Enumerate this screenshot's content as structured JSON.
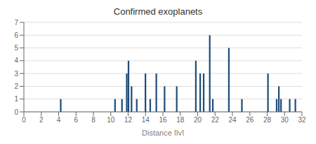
{
  "chart_data": {
    "type": "bar",
    "title": "Confirmed exoplanets",
    "xlabel": "Distance [ly]",
    "x": [
      4.25,
      10.5,
      11.3,
      11.85,
      12.05,
      12.4,
      13.0,
      14.0,
      14.55,
      15.25,
      16.2,
      17.6,
      19.8,
      20.3,
      20.7,
      21.4,
      21.75,
      23.6,
      25.1,
      28.1,
      29.1,
      29.35,
      29.6,
      30.6,
      31.25
    ],
    "values": [
      1,
      1,
      1,
      3,
      4,
      2,
      1,
      3,
      1,
      3,
      2,
      2,
      4,
      3,
      3,
      6,
      1,
      5,
      1,
      3,
      1,
      2,
      1,
      1,
      1
    ],
    "color": "#1e4d78",
    "xlim": [
      0,
      32
    ],
    "ylim": [
      0,
      7
    ],
    "xticks": [
      0,
      2,
      4,
      6,
      8,
      10,
      12,
      14,
      16,
      18,
      20,
      22,
      24,
      26,
      28,
      30,
      32
    ],
    "yticks": [
      0,
      1,
      2,
      3,
      4,
      5,
      6,
      7
    ],
    "grid": true
  }
}
